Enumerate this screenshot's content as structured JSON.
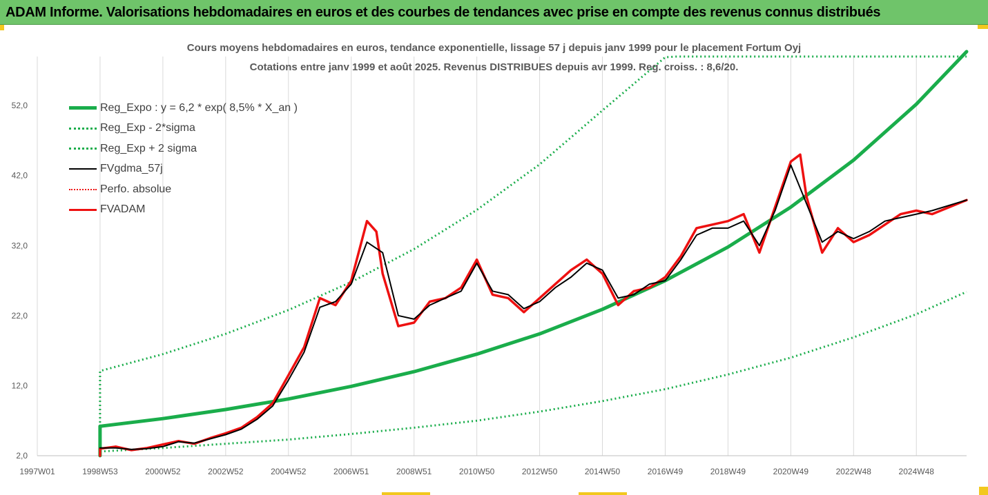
{
  "banner": {
    "title": "ADAM Informe. Valorisations hebdomadaires en euros et des courbes de tendances avec prise en compte des revenus connus distribués"
  },
  "colors": {
    "banner_bg": "#6fc46a",
    "accent_corners": "#f2c81e",
    "trend": "#1aad4b",
    "bands": "#1aad4b",
    "smoothed": "#000000",
    "price": "#ee1111",
    "perf_absolue": "#ee1111"
  },
  "chart_data": {
    "type": "line",
    "title": "Cours moyens hebdomadaires en euros, tendance exponentielle, lissage 57 j depuis janv 1999 pour le placement Fortum Oyj",
    "subtitle": "Cotations entre janv 1999 et août 2025. Revenus DISTRIBUES depuis avr 1999. Reg. croiss. : 8,6/20.",
    "xlabel": "",
    "ylabel": "",
    "xlim": [
      1997.0,
      2026.6
    ],
    "ylim": [
      2.0,
      59.0
    ],
    "grid": {
      "x": true,
      "y": false
    },
    "legend_position": "top-left",
    "x_ticks": [
      {
        "label": "1997W01",
        "x": 1997.0
      },
      {
        "label": "1998W53",
        "x": 1999.0
      },
      {
        "label": "2000W52",
        "x": 2001.0
      },
      {
        "label": "2002W52",
        "x": 2003.0
      },
      {
        "label": "2004W52",
        "x": 2005.0
      },
      {
        "label": "2006W51",
        "x": 2007.0
      },
      {
        "label": "2008W51",
        "x": 2009.0
      },
      {
        "label": "2010W50",
        "x": 2011.0
      },
      {
        "label": "2012W50",
        "x": 2013.0
      },
      {
        "label": "2014W50",
        "x": 2015.0
      },
      {
        "label": "2016W49",
        "x": 2017.0
      },
      {
        "label": "2018W49",
        "x": 2019.0
      },
      {
        "label": "2020W49",
        "x": 2021.0
      },
      {
        "label": "2022W48",
        "x": 2023.0
      },
      {
        "label": "2024W48",
        "x": 2025.0
      }
    ],
    "y_ticks": [
      {
        "label": "2,0",
        "y": 2.0
      },
      {
        "label": "12,0",
        "y": 12.0
      },
      {
        "label": "22,0",
        "y": 22.0
      },
      {
        "label": "32,0",
        "y": 32.0
      },
      {
        "label": "42,0",
        "y": 42.0
      },
      {
        "label": "52,0",
        "y": 52.0
      }
    ],
    "series": [
      {
        "name": "Reg_Expo : y = 6,2 * exp( 8,5% *  X_an )",
        "style": "solid-thick",
        "x": [
          1999.0,
          2001.0,
          2003.0,
          2005.0,
          2007.0,
          2009.0,
          2011.0,
          2013.0,
          2015.0,
          2017.0,
          2019.0,
          2021.0,
          2023.0,
          2025.0,
          2026.6
        ],
        "values": [
          6.2,
          7.3,
          8.6,
          10.1,
          11.9,
          14.0,
          16.5,
          19.4,
          22.9,
          27.0,
          31.8,
          37.5,
          44.2,
          52.2,
          59.7
        ]
      },
      {
        "name": "Reg_Exp - 2*sigma",
        "style": "dotted",
        "x": [
          1999.0,
          2001.0,
          2003.0,
          2005.0,
          2007.0,
          2009.0,
          2011.0,
          2013.0,
          2015.0,
          2017.0,
          2019.0,
          2021.0,
          2023.0,
          2025.0,
          2026.6
        ],
        "values": [
          2.6,
          3.1,
          3.7,
          4.3,
          5.1,
          6.0,
          7.0,
          8.3,
          9.8,
          11.5,
          13.6,
          16.0,
          18.9,
          22.2,
          25.4
        ]
      },
      {
        "name": "Reg_Exp + 2 sigma",
        "style": "dotted",
        "x": [
          1999.0,
          2001.0,
          2003.0,
          2005.0,
          2007.0,
          2009.0,
          2011.0,
          2013.0,
          2015.0,
          2017.0,
          2017.37,
          2026.6
        ],
        "values": [
          14.1,
          16.5,
          19.4,
          22.8,
          26.8,
          31.5,
          37.1,
          43.6,
          51.3,
          58.9,
          59.0,
          59.0
        ]
      },
      {
        "name": "FVgdma_57j",
        "style": "solid-thin",
        "x": [
          1999.0,
          1999.5,
          2000.0,
          2000.5,
          2001.0,
          2001.5,
          2002.0,
          2002.5,
          2003.0,
          2003.5,
          2004.0,
          2004.5,
          2005.0,
          2005.5,
          2006.0,
          2006.5,
          2007.0,
          2007.5,
          2008.0,
          2008.5,
          2009.0,
          2009.5,
          2010.0,
          2010.5,
          2011.0,
          2011.5,
          2012.0,
          2012.5,
          2013.0,
          2013.5,
          2014.0,
          2014.5,
          2015.0,
          2015.5,
          2016.0,
          2016.5,
          2017.0,
          2017.5,
          2018.0,
          2018.5,
          2019.0,
          2019.5,
          2020.0,
          2020.5,
          2021.0,
          2021.5,
          2022.0,
          2022.5,
          2023.0,
          2023.5,
          2024.0,
          2024.5,
          2025.0,
          2025.5,
          2026.6
        ],
        "values": [
          3.1,
          3.1,
          2.9,
          3.0,
          3.3,
          4.0,
          3.8,
          4.4,
          5.0,
          5.8,
          7.2,
          9.1,
          12.8,
          16.8,
          23.2,
          24.0,
          26.5,
          32.5,
          31.0,
          22.0,
          21.5,
          23.5,
          24.5,
          25.5,
          29.5,
          25.5,
          25.0,
          23.0,
          24.0,
          26.0,
          27.5,
          29.5,
          28.5,
          24.5,
          25.0,
          26.5,
          27.0,
          30.0,
          33.5,
          34.5,
          34.5,
          35.5,
          32.0,
          37.0,
          43.5,
          38.0,
          32.5,
          34.0,
          33.0,
          34.0,
          35.5,
          36.0,
          36.5,
          37.0,
          38.5
        ]
      },
      {
        "name": "Perfo. absolue",
        "style": "dotted",
        "values": []
      },
      {
        "name": "FVADAM",
        "style": "solid-thick",
        "x": [
          1999.0,
          1999.5,
          2000.0,
          2000.5,
          2001.0,
          2001.5,
          2002.0,
          2002.5,
          2003.0,
          2003.5,
          2004.0,
          2004.5,
          2005.0,
          2005.5,
          2006.0,
          2006.5,
          2007.0,
          2007.5,
          2007.8,
          2008.0,
          2008.5,
          2009.0,
          2009.5,
          2010.0,
          2010.5,
          2011.0,
          2011.5,
          2012.0,
          2012.5,
          2013.0,
          2013.5,
          2014.0,
          2014.5,
          2015.0,
          2015.5,
          2016.0,
          2016.5,
          2017.0,
          2017.5,
          2018.0,
          2018.5,
          2019.0,
          2019.5,
          2020.0,
          2020.5,
          2021.0,
          2021.3,
          2021.5,
          2022.0,
          2022.5,
          2023.0,
          2023.5,
          2024.0,
          2024.5,
          2025.0,
          2025.5,
          2026.6
        ],
        "values": [
          3.0,
          3.3,
          2.8,
          3.1,
          3.6,
          4.1,
          3.7,
          4.5,
          5.2,
          6.0,
          7.5,
          9.5,
          13.5,
          17.5,
          24.5,
          23.5,
          27.0,
          35.5,
          34.0,
          28.0,
          20.5,
          21.0,
          24.0,
          24.5,
          26.0,
          30.0,
          25.0,
          24.5,
          22.5,
          24.5,
          26.5,
          28.5,
          30.0,
          28.0,
          23.5,
          25.5,
          26.0,
          27.5,
          30.5,
          34.5,
          35.0,
          35.5,
          36.5,
          31.0,
          37.5,
          44.0,
          45.0,
          39.0,
          31.0,
          34.5,
          32.5,
          33.5,
          35.0,
          36.5,
          37.0,
          36.5,
          38.5
        ]
      }
    ]
  }
}
